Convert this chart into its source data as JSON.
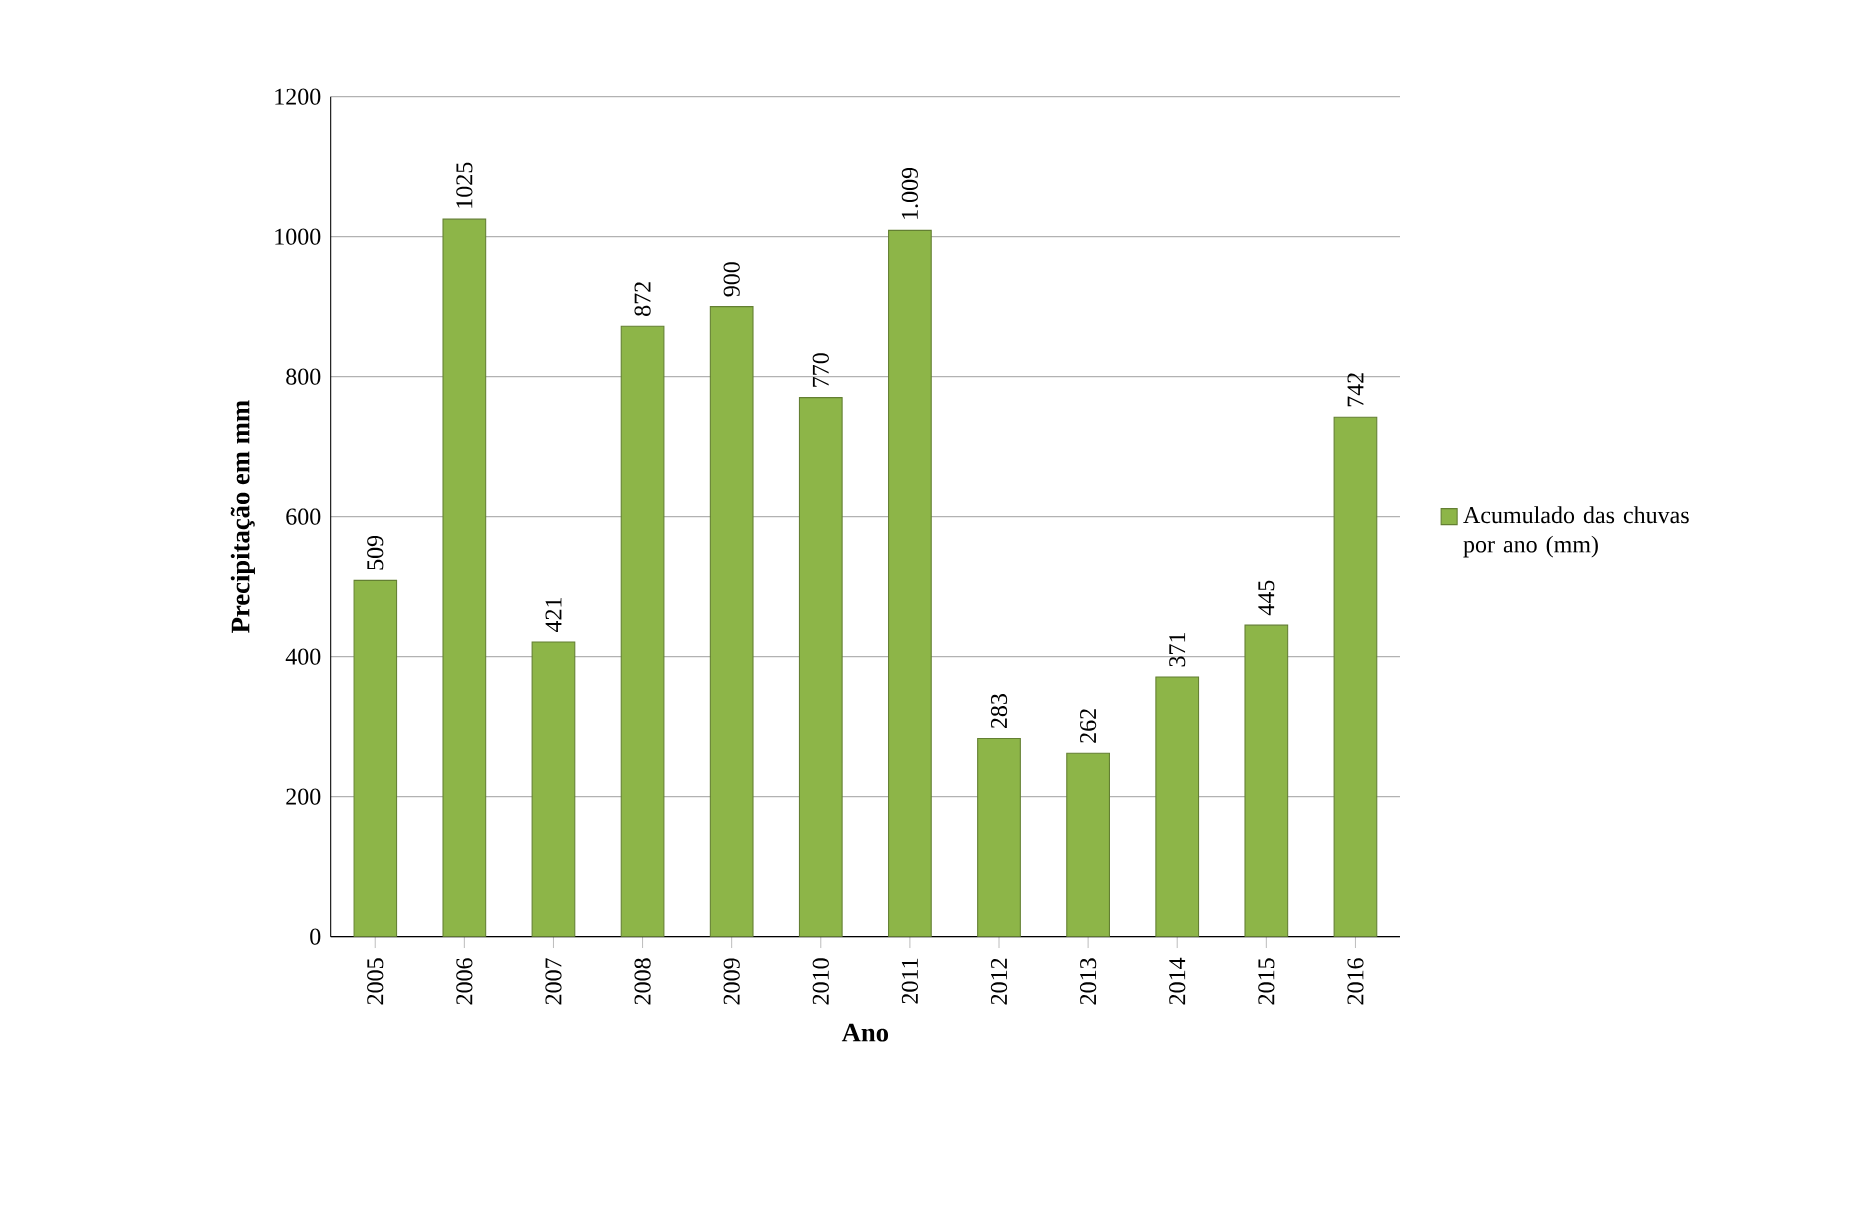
{
  "chart_data": {
    "type": "bar",
    "xlabel": "Ano",
    "ylabel": "Precipitação em mm",
    "categories": [
      "2005",
      "2006",
      "2007",
      "2008",
      "2009",
      "2010",
      "2011",
      "2012",
      "2013",
      "2014",
      "2015",
      "2016"
    ],
    "series": [
      {
        "name": "Acumulado das chuvas por ano (mm)",
        "color": "#8db548",
        "values": [
          509,
          1025,
          421,
          872,
          900,
          770,
          1009,
          283,
          262,
          371,
          445,
          742
        ],
        "value_labels": [
          "509",
          "1025",
          "421",
          "872",
          "900",
          "770",
          "1.009",
          "283",
          "262",
          "371",
          "445",
          "742"
        ]
      }
    ],
    "ylim": [
      0,
      1200
    ],
    "yticks": [
      0,
      200,
      400,
      600,
      800,
      1000,
      1200
    ],
    "grid": "y",
    "legend": "right"
  }
}
